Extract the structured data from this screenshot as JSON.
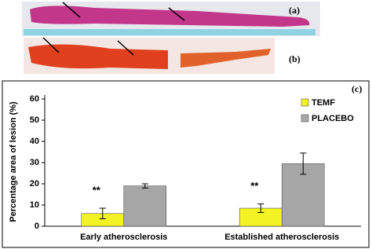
{
  "photos": [
    {
      "label": "(a)"
    },
    {
      "label": "(b)"
    }
  ],
  "chart_data": {
    "type": "bar",
    "panel_label": "(c)",
    "y_label": "Percentage area of lesion (%)",
    "categories": [
      "Early atherosclerosis",
      "Established atherosclerosis"
    ],
    "series": [
      {
        "name": "TEMF",
        "color": "#f2f224",
        "values": [
          6,
          8.5
        ],
        "errors": [
          2.5,
          2
        ]
      },
      {
        "name": "PLACEBO",
        "color": "#a6a6a6",
        "values": [
          19,
          29.5
        ],
        "errors": [
          1,
          5
        ]
      }
    ],
    "annotations": [
      {
        "text": "**",
        "category": 0
      },
      {
        "text": "**",
        "category": 1
      }
    ],
    "ylim": [
      0,
      60
    ],
    "yticks": [
      0,
      10,
      20,
      30,
      40,
      50,
      60
    ],
    "grid": false,
    "legend": "top-right"
  }
}
